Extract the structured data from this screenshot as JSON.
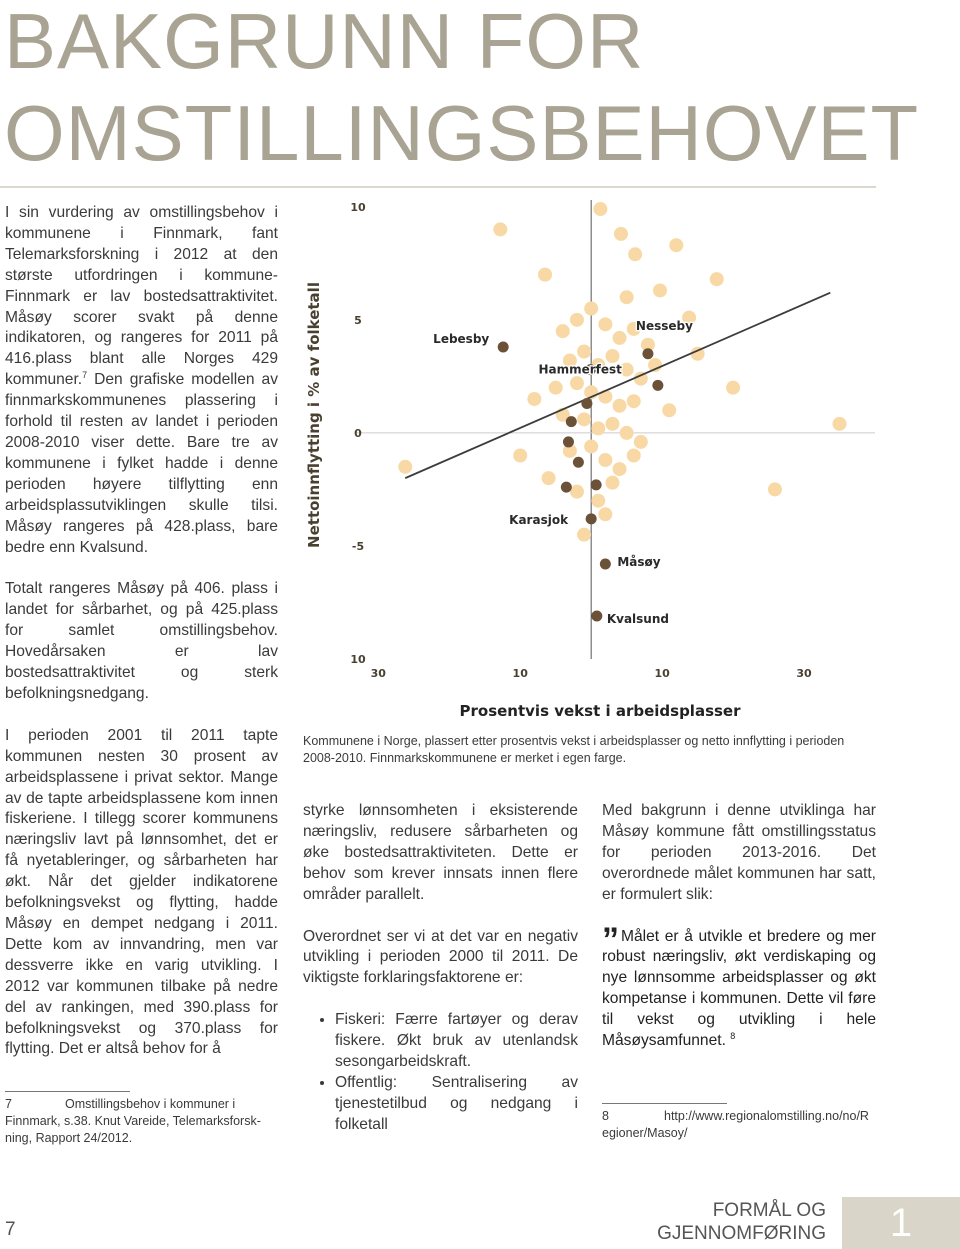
{
  "header": {
    "title_lines": [
      "BAKGRUNN FOR",
      "OMSTILLINGSBEHOVET"
    ]
  },
  "left_column": {
    "p1": {
      "before": "I sin vurdering av omstillingsbehov i kommunene i Finnmark, fant Telemarksforskning i 2012 at den største utfordringen i kommune-Finnmark er lav bostedsattraktivitet. Måsøy scorer svakt på denne indikatoren, og rangeres for 2011 på 416.plass blant alle Norges 429 kommuner.",
      "ref": "7",
      "after": " Den grafiske modellen av finnmarkskommunenes plassering i forhold til resten av landet i perioden 2008-2010 viser dette. Bare tre av kommunene i fylket hadde i denne perioden høyere tilflytting enn arbeidsplassutviklingen skulle tilsi. Måsøy rangeres på 428.plass, bare bedre enn Kvalsund."
    },
    "p2": "Totalt rangeres Måsøy på 406. plass i landet for sårbarhet, og på 425.plass for samlet omstillingsbehov. Hovedårsaken er lav bostedsattraktivitet og sterk befolkningsnedgang.",
    "p3": "I perioden 2001 til 2011 tapte kommunen nesten 30 prosent av arbeidsplassene i privat sektor. Mange av de tapte arbeidsplassene kom innen fiskeriene. I tillegg scorer kommunens næringsliv lavt på lønnsomhet, det er få nyetableringer, og sårbarheten har økt. Når det gjelder indikatorene befolkningsvekst og flytting, hadde Måsøy en dempet nedgang i 2011. Dette kom av innvandring, men var dessverre ikke en varig utvikling. I 2012 var kommunen tilbake på nedre del av rankingen, med 390.plass for befolkningsvekst og 370.plass for flytting. Det er altså behov for å",
    "footnote": {
      "number": "7",
      "text": "Omstillingsbehov i kommuner i Finnmark, s.38. Knut Vareide, Telemarksforsk-ning, Rapport 24/2012."
    }
  },
  "chart_data": {
    "type": "scatter",
    "ylabel": "Nettoinnflytting i % av folketall",
    "xlabel": "Prosentvis vekst i arbeidsplasser",
    "xlim": [
      -33,
      40
    ],
    "ylim": [
      -10,
      10.3
    ],
    "xticks": [
      {
        "value": -30,
        "label": "30"
      },
      {
        "value": -10,
        "label": "10"
      },
      {
        "value": 10,
        "label": "10"
      },
      {
        "value": 30,
        "label": "30"
      }
    ],
    "yticks": [
      10,
      5,
      0,
      -5,
      {
        "value": -10,
        "label": "10"
      }
    ],
    "other_color": "#f8d9a6",
    "finnmark_color": "#6b5138",
    "trend_color": "#3c3c3c",
    "trend_line": {
      "x": [
        -26.2,
        33.7
      ],
      "y": [
        -2.0,
        6.2
      ]
    },
    "other": {
      "x": [
        -26.2,
        -12.8,
        4.2,
        12,
        35,
        25.9,
        17.7,
        13.8,
        -6.5,
        1.3,
        6.2,
        9.7,
        -10,
        -4,
        -2,
        0,
        2,
        4,
        6,
        8,
        -3,
        -1,
        1,
        3,
        5,
        7,
        9,
        -5,
        -2,
        0,
        2,
        4,
        6,
        -4,
        -1,
        1,
        3,
        5,
        7,
        -3,
        0,
        2,
        4,
        -6,
        -2,
        1,
        3,
        6,
        11,
        15,
        -8,
        20,
        -1,
        2,
        5
      ],
      "y": [
        -1.5,
        9.0,
        8.8,
        8.3,
        0.4,
        -2.5,
        6.8,
        5.1,
        7.0,
        9.9,
        7.9,
        6.3,
        -1.0,
        4.5,
        5.0,
        5.5,
        4.8,
        4.2,
        4.6,
        3.9,
        3.2,
        3.6,
        3.0,
        3.4,
        2.8,
        2.4,
        3.0,
        2.0,
        2.2,
        1.8,
        1.6,
        1.2,
        1.4,
        0.8,
        0.6,
        0.2,
        0.4,
        0.0,
        -0.4,
        -0.8,
        -0.6,
        -1.2,
        -1.6,
        -2.0,
        -2.6,
        -3.0,
        -2.2,
        -1.0,
        1.0,
        3.5,
        1.5,
        2.0,
        -4.5,
        -3.6,
        6.0
      ]
    },
    "finnmark": {
      "x": [
        -12.4,
        -0.1,
        8.0,
        0,
        2.0,
        0.8,
        9.4,
        -2.8,
        -3.2,
        -0.6,
        -1.8,
        -3.5,
        0.7
      ],
      "y": [
        3.8,
        2.8,
        3.5,
        -3.8,
        -5.8,
        -8.1,
        2.1,
        0.5,
        -0.4,
        1.3,
        -1.3,
        -2.4,
        -2.3
      ],
      "labels": [
        "Lebesby",
        "Hammerfest",
        "Nesseby",
        "Karasjok",
        "Måsøy",
        "Kvalsund",
        null,
        null,
        null,
        null,
        null,
        null,
        null
      ]
    },
    "caption": "Kommunene i Norge, plassert etter prosentvis vekst i arbeidsplasser og netto innflytting i perioden 2008-2010. Finnmarkskommunene er merket i egen farge."
  },
  "middle_column": {
    "p1": "styrke lønnsomheten i eksisterende næringsliv, redusere sårbarheten og øke bostedsattraktiviteten. Dette er behov som krever innsats innen flere områder parallelt.",
    "p2": "Overordnet ser vi at det var en negativ utvikling i perioden 2000 til 2011. De viktigste forklaringsfaktorene er:",
    "bullets": [
      "Fiskeri: Færre fartøyer og derav fiskere. Økt bruk av utenlandsk sesongarbeidskraft.",
      "Offentlig: Sentralisering av tjenestetilbud og nedgang i folketall"
    ]
  },
  "right_column": {
    "p1": "Med bakgrunn i denne utviklinga har Måsøy kommune fått omstillingsstatus for perioden 2013-2016. Det overordnede målet kommunen har satt, er formulert slik:",
    "quote": {
      "mark": "”",
      "text": "Målet er å utvikle et bredere og mer robust næringsliv, økt verdiskaping og nye lønnsomme arbeidsplasser og økt kompetanse i kommunen. Dette vil føre til vekst og utvikling i hele Måsøysamfunnet.",
      "ref": "8"
    },
    "footnote": {
      "number": "8",
      "text": "http://www.regionalomstilling.no/no/Regioner/Masoy/"
    }
  },
  "footer": {
    "page_number": "7",
    "section_lines": [
      "FORMÅL OG",
      "GJENNOMFØRING"
    ],
    "section_number": "1"
  }
}
